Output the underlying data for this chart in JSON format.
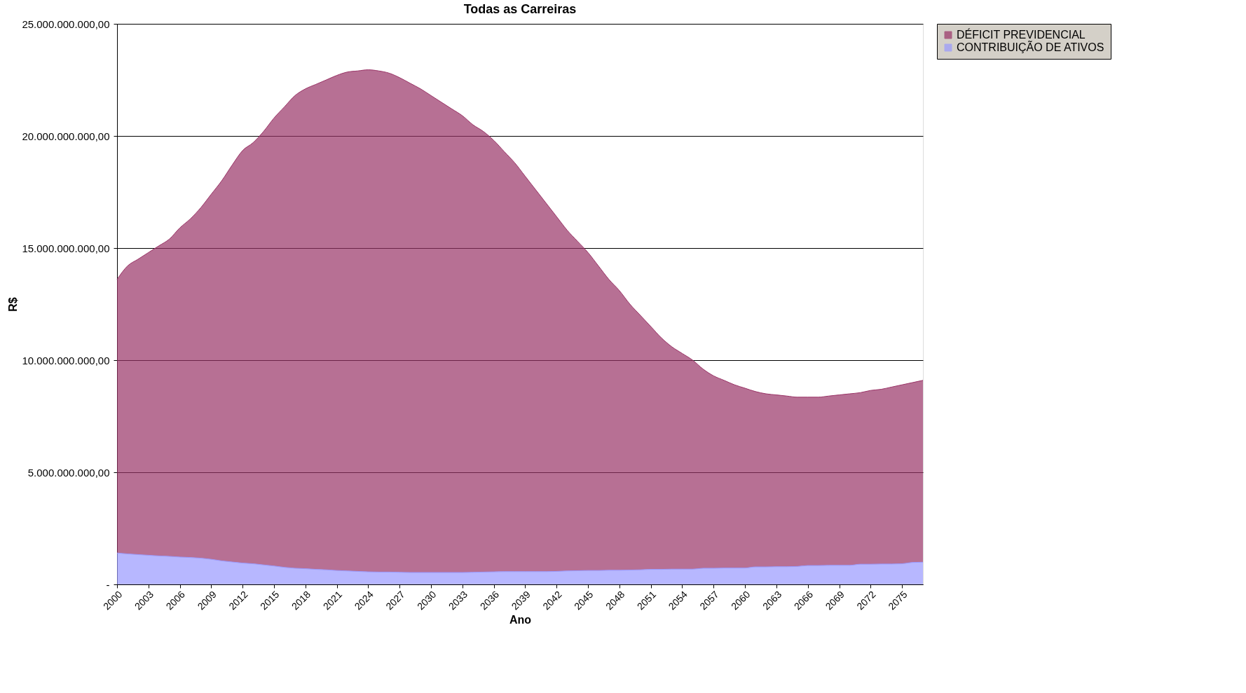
{
  "chart_data": {
    "type": "area",
    "title": "Todas as Carreiras",
    "xlabel": "Ano",
    "ylabel": "R$",
    "stacked": true,
    "grid": "y",
    "legend": "right",
    "x": [
      2000,
      2001,
      2002,
      2003,
      2004,
      2005,
      2006,
      2007,
      2008,
      2009,
      2010,
      2011,
      2012,
      2013,
      2014,
      2015,
      2016,
      2017,
      2018,
      2019,
      2020,
      2021,
      2022,
      2023,
      2024,
      2025,
      2026,
      2027,
      2028,
      2029,
      2030,
      2031,
      2032,
      2033,
      2034,
      2035,
      2036,
      2037,
      2038,
      2039,
      2040,
      2041,
      2042,
      2043,
      2044,
      2045,
      2046,
      2047,
      2048,
      2049,
      2050,
      2051,
      2052,
      2053,
      2054,
      2055,
      2056,
      2057,
      2058,
      2059,
      2060,
      2061,
      2062,
      2063,
      2064,
      2065,
      2066,
      2067,
      2068,
      2069,
      2070,
      2071,
      2072,
      2073,
      2074,
      2075,
      2076,
      2077
    ],
    "xlim": [
      2000,
      2077
    ],
    "xticks": [
      2000,
      2003,
      2006,
      2009,
      2012,
      2015,
      2018,
      2021,
      2024,
      2027,
      2030,
      2033,
      2036,
      2039,
      2042,
      2045,
      2048,
      2051,
      2054,
      2057,
      2060,
      2063,
      2066,
      2069,
      2072,
      2075
    ],
    "ylim": [
      0,
      25000000000.0
    ],
    "yticks": [
      {
        "value": 0,
        "label": "-"
      },
      {
        "value": 5000000000.0,
        "label": "5.000.000.000,00"
      },
      {
        "value": 10000000000.0,
        "label": "10.000.000.000,00"
      },
      {
        "value": 15000000000.0,
        "label": "15.000.000.000,00"
      },
      {
        "value": 20000000000.0,
        "label": "20.000.000.000,00"
      },
      {
        "value": 25000000000.0,
        "label": "25.000.000.000,00"
      }
    ],
    "series": [
      {
        "name": "CONTRIBUIÇÃO DE ATIVOS",
        "color": "#9999ff",
        "values": [
          1400000000.0,
          1360000000.0,
          1330000000.0,
          1300000000.0,
          1270000000.0,
          1250000000.0,
          1220000000.0,
          1200000000.0,
          1170000000.0,
          1120000000.0,
          1050000000.0,
          1000000000.0,
          950000000.0,
          920000000.0,
          870000000.0,
          820000000.0,
          760000000.0,
          720000000.0,
          700000000.0,
          670000000.0,
          650000000.0,
          620000000.0,
          600000000.0,
          580000000.0,
          560000000.0,
          550000000.0,
          550000000.0,
          540000000.0,
          530000000.0,
          530000000.0,
          530000000.0,
          530000000.0,
          530000000.0,
          530000000.0,
          540000000.0,
          550000000.0,
          560000000.0,
          570000000.0,
          570000000.0,
          570000000.0,
          570000000.0,
          570000000.0,
          580000000.0,
          600000000.0,
          610000000.0,
          620000000.0,
          620000000.0,
          630000000.0,
          630000000.0,
          640000000.0,
          650000000.0,
          670000000.0,
          670000000.0,
          680000000.0,
          680000000.0,
          680000000.0,
          720000000.0,
          720000000.0,
          730000000.0,
          730000000.0,
          730000000.0,
          780000000.0,
          780000000.0,
          790000000.0,
          790000000.0,
          800000000.0,
          840000000.0,
          840000000.0,
          850000000.0,
          850000000.0,
          850000000.0,
          900000000.0,
          900000000.0,
          910000000.0,
          910000000.0,
          920000000.0,
          980000000.0,
          990000000.0
        ]
      },
      {
        "name": "DÉFICIT PREVIDENCIAL",
        "color": "#993366",
        "values": [
          12200000000.0,
          12840000000.0,
          13170000000.0,
          13500000000.0,
          13830000000.0,
          14150000000.0,
          14680000000.0,
          15100000000.0,
          15630000000.0,
          16280000000.0,
          16950000000.0,
          17700000000.0,
          18400000000.0,
          18780000000.0,
          19330000000.0,
          19980000000.0,
          20540000000.0,
          21080000000.0,
          21400000000.0,
          21630000000.0,
          21850000000.0,
          22080000000.0,
          22250000000.0,
          22320000000.0,
          22390000000.0,
          22350000000.0,
          22250000000.0,
          22060000000.0,
          21820000000.0,
          21570000000.0,
          21270000000.0,
          20970000000.0,
          20670000000.0,
          20370000000.0,
          19960000000.0,
          19650000000.0,
          19240000000.0,
          18730000000.0,
          18230000000.0,
          17630000000.0,
          17030000000.0,
          16430000000.0,
          15820000000.0,
          15200000000.0,
          14690000000.0,
          14180000000.0,
          13580000000.0,
          12970000000.0,
          12470000000.0,
          11860000000.0,
          11350000000.0,
          10830000000.0,
          10330000000.0,
          9920000000.0,
          9620000000.0,
          9320000000.0,
          8880000000.0,
          8580000000.0,
          8370000000.0,
          8170000000.0,
          8020000000.0,
          7820000000.0,
          7720000000.0,
          7660000000.0,
          7610000000.0,
          7550000000.0,
          7510000000.0,
          7510000000.0,
          7550000000.0,
          7600000000.0,
          7650000000.0,
          7650000000.0,
          7750000000.0,
          7790000000.0,
          7890000000.0,
          7980000000.0,
          8020000000.0,
          8110000000.0
        ]
      }
    ]
  }
}
